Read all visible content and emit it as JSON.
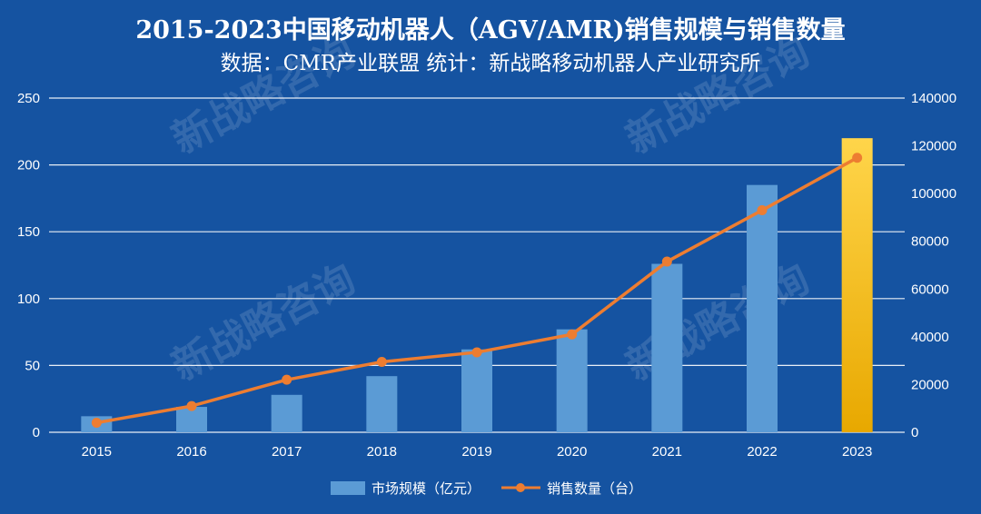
{
  "chart_data": {
    "type": "bar+line",
    "title": "2015-2023中国移动机器人（AGV/AMR)销售规模与销售数量",
    "subtitle": "数据：CMR产业联盟 统计：新战略移动机器人产业研究所",
    "categories": [
      "2015",
      "2016",
      "2017",
      "2018",
      "2019",
      "2020",
      "2021",
      "2022",
      "2023"
    ],
    "series": [
      {
        "name": "市场规模（亿元）",
        "type": "bar",
        "axis": "left",
        "values": [
          12,
          19,
          28,
          42,
          62,
          77,
          126,
          185,
          220
        ]
      },
      {
        "name": "销售数量（台）",
        "type": "line",
        "axis": "right",
        "values": [
          4000,
          11000,
          22000,
          29500,
          33500,
          41000,
          71500,
          93000,
          115000
        ]
      }
    ],
    "left_axis": {
      "min": 0,
      "max": 250,
      "ticks": [
        0,
        50,
        100,
        150,
        200,
        250
      ]
    },
    "right_axis": {
      "min": 0,
      "max": 140000,
      "ticks": [
        0,
        20000,
        40000,
        60000,
        80000,
        100000,
        120000,
        140000
      ]
    },
    "grid": true,
    "legend_position": "bottom",
    "watermark_text": "新战略咨询",
    "colors": {
      "background": "#1553a1",
      "bar": "#5b9bd5",
      "bar_highlight": "#ffc000",
      "line": "#ed7d31",
      "grid": "#ffffff",
      "text": "#ffffff"
    }
  }
}
